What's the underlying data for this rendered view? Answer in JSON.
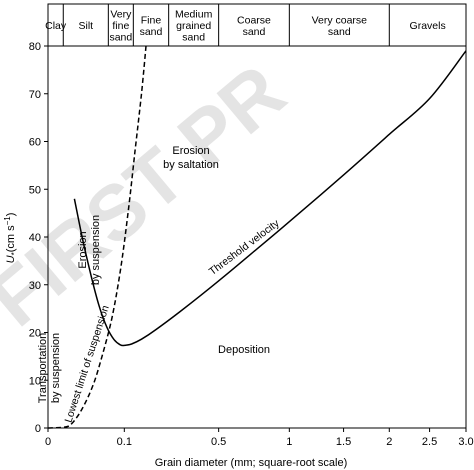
{
  "chart_data": {
    "type": "line",
    "watermark": "FIRST PR",
    "xlabel": "Grain diameter (mm; square-root scale)",
    "ylabel_main": "U",
    "ylabel_sub": "*",
    "ylabel_unit": "(cm s",
    "ylabel_exp": "−1",
    "ylabel_close": ")",
    "x_scale": "sqrt",
    "xlim": [
      0,
      3.0
    ],
    "ylim": [
      0,
      80
    ],
    "x_ticks": [
      {
        "value": 0,
        "label": "0"
      },
      {
        "value": 0.1,
        "label": "0.1"
      },
      {
        "value": 0.5,
        "label": "0.5"
      },
      {
        "value": 1,
        "label": "1"
      },
      {
        "value": 1.5,
        "label": "1.5"
      },
      {
        "value": 2,
        "label": "2"
      },
      {
        "value": 2.5,
        "label": "2.5"
      },
      {
        "value": 3.0,
        "label": "3.0"
      }
    ],
    "y_ticks": [
      0,
      10,
      20,
      30,
      40,
      50,
      60,
      70,
      80
    ],
    "size_classes": [
      {
        "lines": [
          "Clay"
        ],
        "from": 0,
        "to": 0.004
      },
      {
        "lines": [
          "Silt"
        ],
        "from": 0.004,
        "to": 0.0625
      },
      {
        "lines": [
          "Very",
          "fine",
          "sand"
        ],
        "from": 0.0625,
        "to": 0.125
      },
      {
        "lines": [
          "Fine",
          "sand"
        ],
        "from": 0.125,
        "to": 0.25
      },
      {
        "lines": [
          "Medium",
          "grained",
          "sand"
        ],
        "from": 0.25,
        "to": 0.5
      },
      {
        "lines": [
          "Coarse",
          "sand"
        ],
        "from": 0.5,
        "to": 1.0
      },
      {
        "lines": [
          "Very coarse",
          "sand"
        ],
        "from": 1.0,
        "to": 2.0
      },
      {
        "lines": [
          "Gravels"
        ],
        "from": 2.0,
        "to": 3.0
      }
    ],
    "series": [
      {
        "name": "Threshold velocity",
        "style": "solid",
        "points": [
          [
            0.012,
            48
          ],
          [
            0.02,
            40
          ],
          [
            0.03,
            33
          ],
          [
            0.045,
            25.5
          ],
          [
            0.06,
            21
          ],
          [
            0.075,
            18.5
          ],
          [
            0.09,
            17.4
          ],
          [
            0.1,
            17.3
          ],
          [
            0.12,
            17.6
          ],
          [
            0.15,
            18.6
          ],
          [
            0.2,
            20.6
          ],
          [
            0.3,
            24.4
          ],
          [
            0.5,
            30.8
          ],
          [
            0.75,
            37.5
          ],
          [
            1.0,
            43.2
          ],
          [
            1.5,
            53.0
          ],
          [
            2.0,
            61.5
          ],
          [
            2.5,
            69.0
          ],
          [
            3.0,
            79.0
          ]
        ]
      },
      {
        "name": "Lowest limit of suspension",
        "style": "dashed",
        "points": [
          [
            0,
            0
          ],
          [
            0.005,
            0.2
          ],
          [
            0.01,
            1
          ],
          [
            0.02,
            4
          ],
          [
            0.035,
            9
          ],
          [
            0.05,
            15
          ],
          [
            0.07,
            23
          ],
          [
            0.09,
            33
          ],
          [
            0.11,
            45
          ],
          [
            0.13,
            58
          ],
          [
            0.15,
            70
          ],
          [
            0.165,
            80
          ]
        ]
      }
    ],
    "annotations": [
      {
        "text": "Threshold velocity",
        "rotate": -37
      },
      {
        "text": "Lowest limit of suspension",
        "rotate": -72
      },
      {
        "text": "Transportation by suspension",
        "rotate": -90
      },
      {
        "text": "Erosion by suspension",
        "rotate": -90
      },
      {
        "text": "Erosion by saltation",
        "rotate": 0
      },
      {
        "text": "Deposition",
        "rotate": 0
      }
    ]
  }
}
